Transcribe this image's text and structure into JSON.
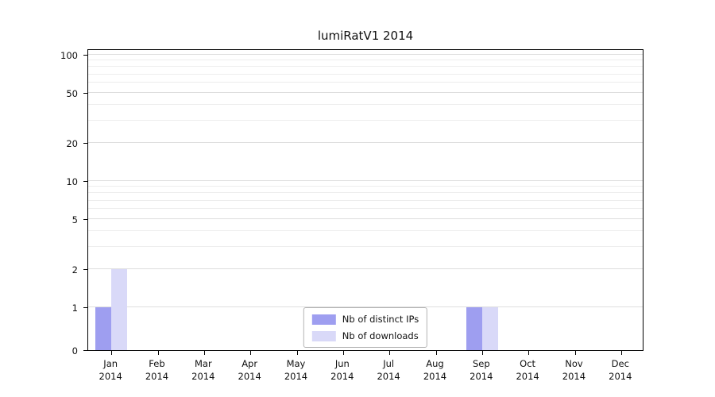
{
  "colors": {
    "ips": "#9e9ef0",
    "downloads": "#d9d9f8",
    "grid_major": "#dedede",
    "grid_minor": "#ededed",
    "axis": "#000000"
  },
  "chart_data": {
    "type": "bar",
    "title": "lumiRatV1 2014",
    "xlabel": "",
    "ylabel": "",
    "yscale": "symlog",
    "ylim": [
      0,
      110
    ],
    "grid": true,
    "legend_position": "lower center",
    "year": "2014",
    "categories": [
      "Jan",
      "Feb",
      "Mar",
      "Apr",
      "May",
      "Jun",
      "Jul",
      "Aug",
      "Sep",
      "Oct",
      "Nov",
      "Dec"
    ],
    "yticks": [
      0,
      1,
      2,
      5,
      10,
      20,
      50,
      100
    ],
    "minor_yticks": [
      3,
      4,
      6,
      7,
      8,
      9,
      30,
      40,
      60,
      70,
      80,
      90
    ],
    "series": [
      {
        "name": "Nb of distinct IPs",
        "key": "ips",
        "values": [
          1,
          0,
          0,
          0,
          0,
          0,
          0,
          0,
          1,
          0,
          0,
          0
        ]
      },
      {
        "name": "Nb of downloads",
        "key": "downloads",
        "values": [
          2,
          0,
          0,
          0,
          0,
          0,
          0,
          0,
          1,
          0,
          0,
          0
        ]
      }
    ]
  }
}
